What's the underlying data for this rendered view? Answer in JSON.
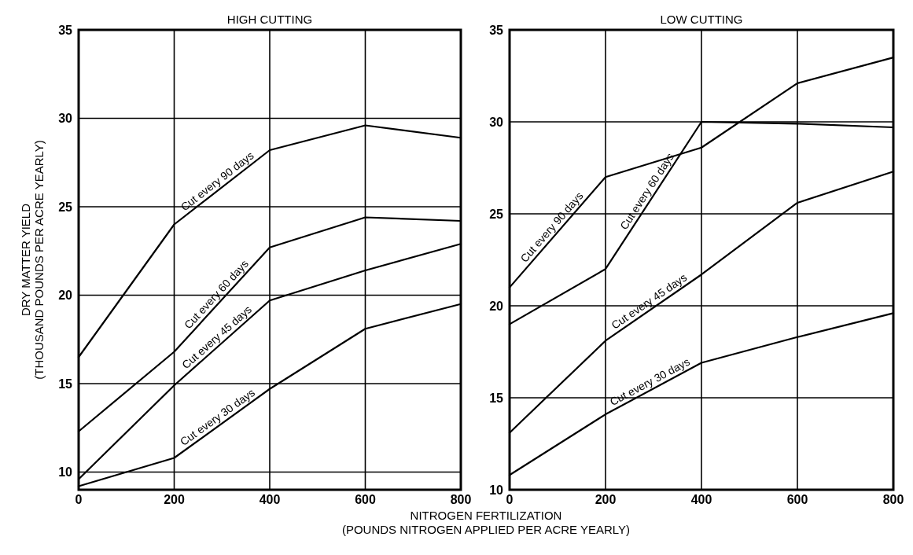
{
  "chart_data": [
    {
      "type": "line",
      "title": "HIGH CUTTING",
      "xlabel": "NITROGEN FERTILIZATION\n(POUNDS NITROGEN APPLIED PER ACRE YEARLY)",
      "ylabel": "DRY MATTER YIELD\n(THOUSAND POUNDS PER ACRE YEARLY)",
      "x": [
        0,
        200,
        400,
        600,
        800
      ],
      "xlim": [
        0,
        800
      ],
      "xticks": [
        0,
        200,
        400,
        600,
        800
      ],
      "ylim": [
        9,
        35
      ],
      "yticks": [
        10,
        15,
        20,
        25,
        30,
        35
      ],
      "grid": true,
      "series": [
        {
          "name": "Cut every 90 days",
          "color": "#000000",
          "values": [
            16.5,
            24.0,
            28.2,
            29.6,
            28.9
          ]
        },
        {
          "name": "Cut every 60 days",
          "color": "#000000",
          "values": [
            12.3,
            16.8,
            22.7,
            24.4,
            24.2
          ]
        },
        {
          "name": "Cut every 45 days",
          "color": "#000000",
          "values": [
            9.6,
            14.9,
            19.7,
            21.4,
            22.9
          ]
        },
        {
          "name": "Cut every 30 days",
          "color": "#000000",
          "values": [
            9.2,
            10.8,
            14.7,
            18.1,
            19.5
          ]
        }
      ]
    },
    {
      "type": "line",
      "title": "LOW CUTTING",
      "x": [
        0,
        200,
        400,
        600,
        800
      ],
      "xlim": [
        0,
        800
      ],
      "xticks": [
        0,
        200,
        400,
        600,
        800
      ],
      "ylim": [
        10,
        35
      ],
      "yticks": [
        10,
        15,
        20,
        25,
        30,
        35
      ],
      "grid": true,
      "series": [
        {
          "name": "Cut every 90 days",
          "color": "#000000",
          "values": [
            21.0,
            27.0,
            28.6,
            32.1,
            33.5
          ]
        },
        {
          "name": "Cut every 60 days",
          "color": "#000000",
          "values": [
            19.0,
            22.0,
            30.0,
            29.9,
            29.7
          ]
        },
        {
          "name": "Cut every 45 days",
          "color": "#000000",
          "values": [
            13.1,
            18.1,
            21.7,
            25.6,
            27.3
          ]
        },
        {
          "name": "Cut every 30 days",
          "color": "#000000",
          "values": [
            10.8,
            14.1,
            16.9,
            18.3,
            19.6
          ]
        }
      ]
    }
  ]
}
